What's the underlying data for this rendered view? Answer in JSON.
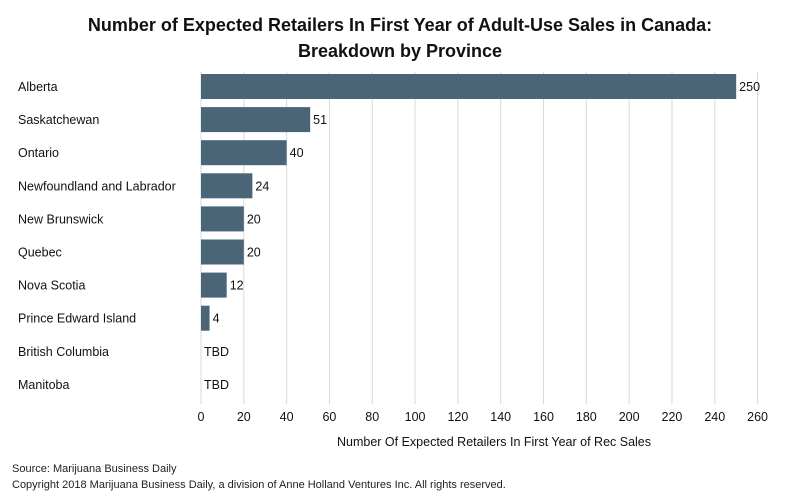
{
  "chart_data": {
    "type": "bar",
    "orientation": "horizontal",
    "title_lines": [
      "Number of Expected Retailers In First Year of Adult-Use Sales in Canada:",
      "Breakdown by Province"
    ],
    "categories": [
      "Alberta",
      "Saskatchewan",
      "Ontario",
      "Newfoundland and Labrador",
      "New Brunswick",
      "Quebec",
      "Nova Scotia",
      "Prince Edward Island",
      "British Columbia",
      "Manitoba"
    ],
    "values": [
      250,
      51,
      40,
      24,
      20,
      20,
      12,
      4,
      null,
      null
    ],
    "value_labels": [
      "250",
      "51",
      "40",
      "24",
      "20",
      "20",
      "12",
      "4",
      "TBD",
      "TBD"
    ],
    "xlabel": "Number Of Expected Retailers In First Year of Rec Sales",
    "ylabel": "",
    "xlim": [
      0,
      270
    ],
    "xticks": [
      0,
      20,
      40,
      60,
      80,
      100,
      120,
      140,
      160,
      180,
      200,
      220,
      240,
      260
    ],
    "grid": "vertical",
    "bar_color": "#4a6478",
    "grid_color": "#d9d9d9"
  },
  "footer": {
    "source": "Source: Marijuana Business Daily",
    "copyright": "Copyright 2018 Marijuana Business Daily, a division of Anne Holland Ventures Inc. All rights reserved."
  }
}
